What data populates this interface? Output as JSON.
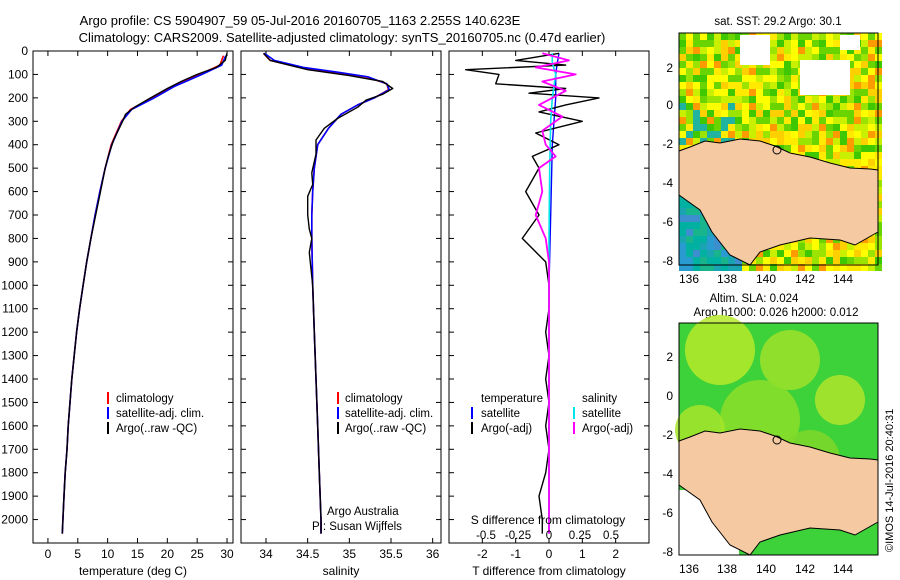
{
  "header": {
    "line1": "Argo profile: CS 5904907_59 05-Jul-2016 20160705_1163 2.255S 140.623E",
    "line2": "Climatology: CARS2009. Satellite-adjusted climatology: synTS_20160705.nc (0.47d earlier)"
  },
  "colors": {
    "climatology": "#ff0000",
    "satellite": "#0000ff",
    "argo": "#000000",
    "salinity_satellite": "#00e5ee",
    "salinity_argo": "#ff00ff",
    "land": "#f5c9a1"
  },
  "chart_data": [
    {
      "type": "line",
      "xlabel": "temperature (deg C)",
      "ylabel": "",
      "xlim": [
        -2.5,
        31
      ],
      "ylim": [
        2100,
        0
      ],
      "xticks": [
        0,
        5,
        10,
        15,
        20,
        25,
        30
      ],
      "yticks": [
        0,
        100,
        200,
        300,
        400,
        500,
        600,
        700,
        800,
        900,
        1000,
        1100,
        1200,
        1300,
        1400,
        1500,
        1600,
        1700,
        1800,
        1900,
        2000
      ],
      "legend": [
        "climatology",
        "satellite-adj. clim.",
        "Argo(..raw -QC)"
      ],
      "series": [
        {
          "name": "climatology",
          "points": [
            [
              29.4,
              20
            ],
            [
              28.8,
              60
            ],
            [
              25.5,
              100
            ],
            [
              21,
              150
            ],
            [
              17.5,
              200
            ],
            [
              13.8,
              250
            ],
            [
              12.3,
              300
            ],
            [
              10.6,
              400
            ],
            [
              9.6,
              500
            ],
            [
              8.7,
              600
            ],
            [
              7.9,
              700
            ],
            [
              7.2,
              800
            ],
            [
              6.5,
              900
            ],
            [
              5.9,
              1000
            ],
            [
              5.3,
              1100
            ],
            [
              4.8,
              1200
            ],
            [
              4.4,
              1300
            ],
            [
              4,
              1400
            ],
            [
              3.7,
              1500
            ],
            [
              3.4,
              1600
            ],
            [
              3.2,
              1700
            ],
            [
              2.9,
              1800
            ],
            [
              2.7,
              1900
            ],
            [
              2.5,
              2000
            ],
            [
              2.4,
              2060
            ]
          ]
        },
        {
          "name": "satellite-adj. clim.",
          "points": [
            [
              29.8,
              20
            ],
            [
              29.1,
              60
            ],
            [
              25.8,
              100
            ],
            [
              21.3,
              150
            ],
            [
              17.8,
              200
            ],
            [
              14,
              250
            ],
            [
              12.4,
              300
            ],
            [
              10.7,
              400
            ],
            [
              9.6,
              500
            ],
            [
              8.7,
              600
            ],
            [
              7.9,
              700
            ],
            [
              7.2,
              800
            ],
            [
              6.5,
              900
            ],
            [
              5.9,
              1000
            ],
            [
              5.3,
              1100
            ],
            [
              4.8,
              1200
            ],
            [
              4.4,
              1300
            ],
            [
              4,
              1400
            ],
            [
              3.7,
              1500
            ],
            [
              3.4,
              1600
            ],
            [
              3.2,
              1700
            ],
            [
              2.9,
              1800
            ],
            [
              2.7,
              1900
            ],
            [
              2.5,
              2000
            ],
            [
              2.4,
              2060
            ]
          ]
        },
        {
          "name": "Argo(..raw -QC)",
          "points": [
            [
              30,
              10
            ],
            [
              29.7,
              40
            ],
            [
              28.2,
              70
            ],
            [
              25,
              100
            ],
            [
              22.3,
              130
            ],
            [
              20,
              160
            ],
            [
              17.2,
              200
            ],
            [
              14.5,
              240
            ],
            [
              13,
              270
            ],
            [
              12.5,
              300
            ],
            [
              11,
              380
            ],
            [
              10.1,
              450
            ],
            [
              9.6,
              500
            ],
            [
              8.8,
              600
            ],
            [
              8,
              700
            ],
            [
              7.2,
              800
            ],
            [
              6.5,
              900
            ],
            [
              5.9,
              1000
            ],
            [
              5.3,
              1100
            ],
            [
              4.8,
              1200
            ],
            [
              4.4,
              1300
            ],
            [
              4,
              1400
            ],
            [
              3.7,
              1500
            ],
            [
              3.4,
              1600
            ],
            [
              3.2,
              1700
            ],
            [
              2.9,
              1800
            ],
            [
              2.7,
              1900
            ],
            [
              2.5,
              2000
            ],
            [
              2.4,
              2060
            ]
          ]
        }
      ]
    },
    {
      "type": "line",
      "xlabel": "salinity",
      "ylabel": "",
      "xlim": [
        33.7,
        36.1
      ],
      "ylim": [
        2100,
        0
      ],
      "xticks": [
        34,
        34.5,
        35,
        35.5,
        36
      ],
      "legend": [
        "climatology",
        "satellite-adj. clim.",
        "Argo(..raw -QC)"
      ],
      "annotation": [
        "Argo Australia",
        "PI: Susan Wijffels"
      ],
      "series": [
        {
          "name": "climatology",
          "points": [
            [
              33.97,
              10
            ],
            [
              34.05,
              40
            ],
            [
              34.4,
              70
            ],
            [
              34.8,
              90
            ],
            [
              35.2,
              110
            ],
            [
              35.45,
              140
            ],
            [
              35.47,
              165
            ],
            [
              35.3,
              200
            ],
            [
              35.1,
              230
            ],
            [
              34.9,
              270
            ],
            [
              34.75,
              330
            ],
            [
              34.62,
              400
            ],
            [
              34.58,
              500
            ],
            [
              34.56,
              600
            ],
            [
              34.55,
              700
            ],
            [
              34.55,
              800
            ],
            [
              34.56,
              1000
            ],
            [
              34.58,
              1200
            ],
            [
              34.6,
              1400
            ],
            [
              34.62,
              1600
            ],
            [
              34.64,
              1800
            ],
            [
              34.66,
              2000
            ],
            [
              34.66,
              2060
            ]
          ]
        },
        {
          "name": "satellite-adj. clim.",
          "points": [
            [
              33.98,
              10
            ],
            [
              34.1,
              40
            ],
            [
              34.45,
              70
            ],
            [
              34.85,
              90
            ],
            [
              35.22,
              110
            ],
            [
              35.45,
              140
            ],
            [
              35.48,
              165
            ],
            [
              35.3,
              200
            ],
            [
              35.1,
              230
            ],
            [
              34.9,
              270
            ],
            [
              34.75,
              330
            ],
            [
              34.62,
              400
            ],
            [
              34.58,
              500
            ],
            [
              34.56,
              600
            ],
            [
              34.55,
              700
            ],
            [
              34.55,
              800
            ],
            [
              34.56,
              1000
            ],
            [
              34.58,
              1200
            ],
            [
              34.6,
              1400
            ],
            [
              34.62,
              1600
            ],
            [
              34.64,
              1800
            ],
            [
              34.66,
              2000
            ],
            [
              34.66,
              2060
            ]
          ]
        },
        {
          "name": "Argo(..raw -QC)",
          "points": [
            [
              33.97,
              10
            ],
            [
              34.05,
              40
            ],
            [
              34.5,
              80
            ],
            [
              35,
              105
            ],
            [
              35.4,
              130
            ],
            [
              35.52,
              160
            ],
            [
              35.4,
              185
            ],
            [
              35.2,
              210
            ],
            [
              35.1,
              240
            ],
            [
              34.85,
              290
            ],
            [
              34.7,
              330
            ],
            [
              34.6,
              380
            ],
            [
              34.6,
              440
            ],
            [
              34.55,
              520
            ],
            [
              34.56,
              570
            ],
            [
              34.5,
              620
            ],
            [
              34.5,
              700
            ],
            [
              34.52,
              760
            ],
            [
              34.55,
              800
            ],
            [
              34.52,
              860
            ],
            [
              34.56,
              1000
            ],
            [
              34.58,
              1200
            ],
            [
              34.6,
              1400
            ],
            [
              34.62,
              1600
            ],
            [
              34.64,
              1800
            ],
            [
              34.66,
              2000
            ],
            [
              34.66,
              2060
            ]
          ]
        }
      ]
    },
    {
      "type": "line",
      "xlabel": "T difference from climatology",
      "ylabel": "",
      "xlim": [
        -3,
        3
      ],
      "ylim": [
        2100,
        0
      ],
      "xticks": [
        -2,
        -1,
        0,
        1,
        2
      ],
      "top_axis_label": "S difference from climatology",
      "top_ticks": [
        "-0.5",
        "-0.25",
        "0",
        "0.25",
        "0.5"
      ],
      "legend_left": [
        "temperature",
        "satellite",
        "Argo(-adj)"
      ],
      "legend_right": [
        "salinity",
        "satellite",
        "Argo(-adj)"
      ],
      "series": [
        {
          "name": "temperature satellite",
          "points": [
            [
              0.3,
              10
            ],
            [
              0.25,
              50
            ],
            [
              0.2,
              100
            ],
            [
              0.2,
              200
            ],
            [
              0.1,
              400
            ],
            [
              0.05,
              700
            ],
            [
              0,
              1000
            ],
            [
              0,
              1500
            ],
            [
              0,
              2060
            ]
          ]
        },
        {
          "name": "temperature Argo(-adj)",
          "points": [
            [
              0.3,
              10
            ],
            [
              -1,
              40
            ],
            [
              0.5,
              60
            ],
            [
              -2.5,
              80
            ],
            [
              -1.5,
              100
            ],
            [
              -1.6,
              140
            ],
            [
              0.5,
              160
            ],
            [
              -0.6,
              180
            ],
            [
              1.5,
              200
            ],
            [
              0.5,
              230
            ],
            [
              -0.3,
              260
            ],
            [
              1,
              300
            ],
            [
              -0.4,
              350
            ],
            [
              0.3,
              400
            ],
            [
              -0.5,
              450
            ],
            [
              -0.3,
              500
            ],
            [
              -0.7,
              600
            ],
            [
              -0.3,
              700
            ],
            [
              -0.8,
              800
            ],
            [
              -0.1,
              900
            ],
            [
              0,
              1000
            ],
            [
              0,
              1100
            ],
            [
              -0.1,
              1200
            ],
            [
              0,
              1300
            ],
            [
              -0.1,
              1400
            ],
            [
              0,
              1500
            ],
            [
              -0.1,
              1600
            ],
            [
              0,
              1700
            ],
            [
              -0.1,
              1800
            ],
            [
              -0.3,
              1900
            ],
            [
              -0.2,
              2000
            ],
            [
              -0.2,
              2060
            ]
          ]
        },
        {
          "name": "salinity satellite",
          "points": [
            [
              0.1,
              10
            ],
            [
              0.1,
              50
            ],
            [
              0.2,
              100
            ],
            [
              0.1,
              200
            ],
            [
              0.05,
              300
            ],
            [
              0.02,
              500
            ],
            [
              0,
              800
            ],
            [
              0,
              1500
            ],
            [
              0,
              2060
            ]
          ]
        },
        {
          "name": "salinity Argo(-adj)",
          "points": [
            [
              -0.2,
              10
            ],
            [
              0.6,
              40
            ],
            [
              -0.4,
              70
            ],
            [
              0.8,
              100
            ],
            [
              -0.2,
              130
            ],
            [
              0.5,
              170
            ],
            [
              -0.3,
              230
            ],
            [
              0.4,
              280
            ],
            [
              -0.2,
              340
            ],
            [
              -0.1,
              400
            ],
            [
              0.2,
              450
            ],
            [
              -0.3,
              500
            ],
            [
              -0.2,
              600
            ],
            [
              -0.4,
              700
            ],
            [
              -0.1,
              800
            ],
            [
              0,
              900
            ],
            [
              0,
              1000
            ],
            [
              0,
              1500
            ],
            [
              0,
              2060
            ]
          ]
        }
      ]
    }
  ],
  "maps": {
    "sst": {
      "title": "sat. SST: 29.2 Argo: 30.1",
      "xticks": [
        "136",
        "138",
        "140",
        "142",
        "144"
      ],
      "yticks": [
        "2",
        "0",
        "-2",
        "-4",
        "-6",
        "-8"
      ]
    },
    "sla": {
      "title_line1": "Altim. SLA: 0.024",
      "title_line2": "Argo h1000: 0.026 h2000: 0.012",
      "xticks": [
        "136",
        "138",
        "140",
        "142",
        "144"
      ],
      "yticks": [
        "2",
        "0",
        "-2",
        "-4",
        "-6",
        "-8"
      ]
    }
  },
  "footer": {
    "credit": "©IMOS 14-Jul-2016 20:40:31"
  }
}
